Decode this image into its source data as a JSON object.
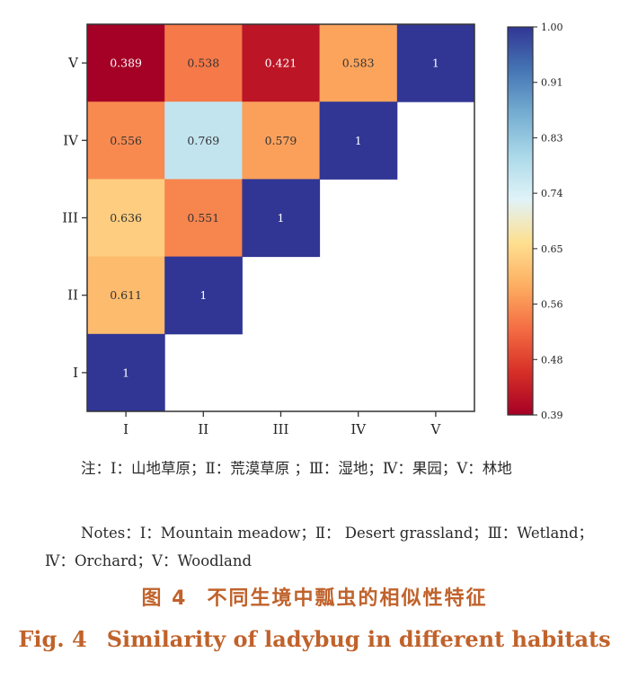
{
  "chart_data": {
    "type": "heatmap",
    "row_labels": [
      "V",
      "IV",
      "III",
      "II",
      "I"
    ],
    "col_labels": [
      "I",
      "II",
      "III",
      "IV",
      "V"
    ],
    "matrix": [
      [
        0.389,
        0.538,
        0.421,
        0.583,
        1
      ],
      [
        0.556,
        0.769,
        0.579,
        1,
        null
      ],
      [
        0.636,
        0.551,
        1,
        null,
        null
      ],
      [
        0.611,
        1,
        null,
        null,
        null
      ],
      [
        1,
        null,
        null,
        null,
        null
      ]
    ],
    "cell_labels": [
      [
        "0.389",
        "0.538",
        "0.421",
        "0.583",
        "1"
      ],
      [
        "0.556",
        "0.769",
        "0.579",
        "1",
        ""
      ],
      [
        "0.636",
        "0.551",
        "1",
        "",
        ""
      ],
      [
        "0.611",
        "1",
        "",
        "",
        ""
      ],
      [
        "1",
        "",
        "",
        "",
        ""
      ]
    ],
    "colorbar": {
      "min": 0.39,
      "max": 1.0,
      "ticks": [
        "1.00",
        "0.91",
        "0.83",
        "0.74",
        "0.65",
        "0.56",
        "0.48",
        "0.39"
      ],
      "colors": [
        "#a50026",
        "#d73027",
        "#f46d43",
        "#fdae61",
        "#fee090",
        "#e0f3f8",
        "#abd9e9",
        "#74add1",
        "#4575b4",
        "#313695"
      ]
    }
  },
  "notes": {
    "zh": "注：Ⅰ：山地草原；Ⅱ：荒漠草原 ；Ⅲ：湿地；Ⅳ：果园；Ⅴ：林地",
    "en": "Notes：Ⅰ：Mountain meadow；Ⅱ： Desert grassland；Ⅲ：Wetland；Ⅳ：Orchard；Ⅴ：Woodland"
  },
  "caption": {
    "zh_label": "图 4",
    "zh_title": "不同生境中瓢虫的相似性特征",
    "en_label": "Fig. 4",
    "en_title": "Similarity of ladybug in different habitats"
  }
}
